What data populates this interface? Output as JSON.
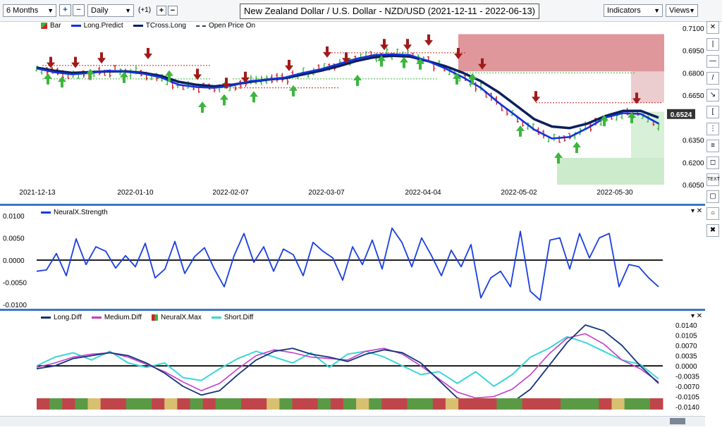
{
  "toolbar": {
    "period": "6 Months",
    "interval": "Daily",
    "offset": "(+1)",
    "plus_icon": "plus-icon",
    "minus_icon": "minus-icon",
    "indicators_label": "Indicators",
    "views_label": "Views"
  },
  "title": "New Zealand Dollar / U.S. Dollar - NZD/USD (2021-12-11 - 2022-06-13)",
  "colors": {
    "up": "#3cb63c",
    "down": "#d02323",
    "long_predict": "#1133dd",
    "tcross": "#0a1f5c",
    "strength": "#1a3ee0",
    "long_diff": "#12327a",
    "medium_diff": "#c23cc8",
    "short_diff": "#3cd6d6",
    "panel_border": "#3b78c4"
  },
  "chart_data": [
    {
      "type": "line",
      "title": "New Zealand Dollar / U.S. Dollar - NZD/USD (2021-12-11 - 2022-06-13)",
      "legend": [
        "Bar",
        "Long.Predict",
        "TCross.Long",
        "Open Price On"
      ],
      "x_ticks": [
        "2021-12-13",
        "2022-01-10",
        "2022-02-07",
        "2022-03-07",
        "2022-04-04",
        "2022-05-02",
        "2022-05-30"
      ],
      "y_ticks": [
        "0.7100",
        "0.6950",
        "0.6800",
        "0.6650",
        "0.6350",
        "0.6200",
        "0.6050"
      ],
      "ylim": [
        0.605,
        0.71
      ],
      "last_price": "0.6524",
      "series": [
        {
          "name": "Long.Predict",
          "values": [
            0.683,
            0.6805,
            0.679,
            0.68,
            0.6815,
            0.6808,
            0.6795,
            0.677,
            0.672,
            0.6705,
            0.67,
            0.6715,
            0.6745,
            0.6755,
            0.677,
            0.68,
            0.6825,
            0.686,
            0.6895,
            0.692,
            0.6925,
            0.692,
            0.688,
            0.683,
            0.677,
            0.67,
            0.66,
            0.651,
            0.642,
            0.636,
            0.637,
            0.643,
            0.65,
            0.653,
            0.6525,
            0.646
          ]
        },
        {
          "name": "TCross.Long",
          "values": [
            0.6835,
            0.6815,
            0.68,
            0.6805,
            0.681,
            0.681,
            0.68,
            0.678,
            0.674,
            0.672,
            0.671,
            0.672,
            0.674,
            0.6755,
            0.6765,
            0.679,
            0.6815,
            0.6845,
            0.688,
            0.6905,
            0.6915,
            0.691,
            0.688,
            0.6845,
            0.68,
            0.6745,
            0.667,
            0.658,
            0.649,
            0.644,
            0.643,
            0.646,
            0.651,
            0.6545,
            0.6545,
            0.65
          ]
        }
      ]
    },
    {
      "type": "line",
      "legend": [
        "NeuralX.Strength"
      ],
      "y_ticks": [
        "0.0100",
        "0.0050",
        "0.0000",
        "-0.0050",
        "-0.0100"
      ],
      "ylim": [
        -0.01,
        0.01
      ],
      "series": [
        {
          "name": "NeuralX.Strength",
          "values": [
            -0.0025,
            -0.0022,
            0.0015,
            -0.0035,
            0.0048,
            -0.001,
            0.003,
            0.002,
            -0.0018,
            0.001,
            -0.0015,
            0.0038,
            -0.004,
            -0.002,
            0.0042,
            -0.003,
            0.0008,
            0.0028,
            -0.002,
            -0.006,
            0.001,
            0.006,
            -0.0005,
            0.003,
            -0.0025,
            0.0025,
            0.0012,
            -0.0035,
            0.004,
            0.002,
            0.0005,
            -0.0045,
            0.003,
            -0.001,
            0.0045,
            -0.002,
            0.0072,
            0.004,
            -0.0015,
            0.005,
            0.001,
            -0.0035,
            0.0022,
            -0.0015,
            0.0035,
            -0.0085,
            -0.004,
            -0.0025,
            -0.006,
            0.0065,
            -0.007,
            -0.009,
            0.0045,
            0.005,
            -0.002,
            0.006,
            0.0005,
            0.005,
            0.006,
            -0.006,
            -0.001,
            -0.0015,
            -0.004,
            -0.006
          ]
        }
      ]
    },
    {
      "type": "line",
      "legend": [
        "Long.Diff",
        "Medium.Diff",
        "NeuralX.Max",
        "Short.Diff"
      ],
      "y_ticks": [
        "0.0140",
        "0.0105",
        "0.0070",
        "0.0035",
        "0.0000",
        "-0.0035",
        "-0.0070",
        "-0.0105",
        "-0.0140"
      ],
      "ylim": [
        -0.014,
        0.014
      ],
      "series": [
        {
          "name": "Long.Diff",
          "values": [
            -0.001,
            0.0,
            0.0025,
            0.0035,
            0.0045,
            0.0035,
            0.001,
            -0.0025,
            -0.007,
            -0.01,
            -0.0085,
            -0.003,
            0.002,
            0.005,
            0.006,
            0.004,
            0.003,
            0.0015,
            0.004,
            0.0055,
            0.0045,
            0.001,
            -0.005,
            -0.011,
            -0.013,
            -0.014,
            -0.0125,
            -0.008,
            0.0,
            0.008,
            0.014,
            0.012,
            0.007,
            0.0,
            -0.006
          ]
        },
        {
          "name": "Medium.Diff",
          "values": [
            -0.0005,
            0.001,
            0.003,
            0.004,
            0.0045,
            0.003,
            0.0005,
            -0.002,
            -0.0055,
            -0.0085,
            -0.006,
            -0.001,
            0.0035,
            0.0055,
            0.0045,
            0.003,
            0.0025,
            0.002,
            0.005,
            0.006,
            0.004,
            0.0,
            -0.0045,
            -0.009,
            -0.011,
            -0.0105,
            -0.008,
            -0.003,
            0.004,
            0.0095,
            0.011,
            0.0075,
            0.002,
            -0.001,
            -0.0055
          ]
        },
        {
          "name": "Short.Diff",
          "values": [
            0.0,
            0.003,
            0.0045,
            0.002,
            0.005,
            0.001,
            -0.0005,
            0.001,
            -0.004,
            -0.005,
            -0.001,
            0.0025,
            0.005,
            0.003,
            0.001,
            0.0045,
            -0.0005,
            0.004,
            0.005,
            0.003,
            0.0,
            -0.003,
            -0.002,
            -0.006,
            -0.002,
            -0.007,
            -0.003,
            0.003,
            0.006,
            0.01,
            0.008,
            0.005,
            0.002,
            0.0005,
            -0.0045
          ]
        }
      ],
      "neuralx_max_colors": [
        "r",
        "g",
        "r",
        "g",
        "y",
        "r",
        "r",
        "g",
        "g",
        "r",
        "y",
        "r",
        "g",
        "r",
        "g",
        "g",
        "r",
        "r",
        "y",
        "g",
        "r",
        "r",
        "g",
        "r",
        "g",
        "y",
        "g",
        "r",
        "r",
        "g",
        "g",
        "r",
        "y",
        "r",
        "r",
        "r",
        "g",
        "g",
        "r",
        "r",
        "r",
        "g",
        "g",
        "g",
        "r",
        "y",
        "g",
        "g",
        "r"
      ]
    }
  ],
  "strength_right_ticks": [
    "0.0100",
    "0.0050",
    "0.0000",
    "-0.0050",
    "-0.0100"
  ]
}
